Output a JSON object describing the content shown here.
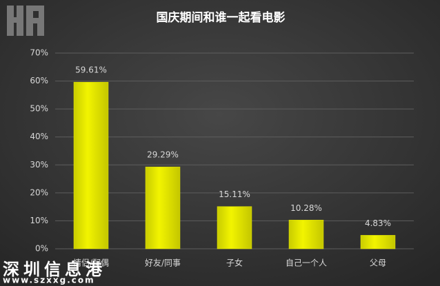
{
  "chart_data": {
    "type": "bar",
    "title": "国庆期间和谁一起看电影",
    "categories": [
      "情侣/配偶",
      "好友/同事",
      "子女",
      "自己一个人",
      "父母"
    ],
    "values": [
      59.61,
      29.29,
      15.11,
      10.28,
      4.83
    ],
    "value_labels": [
      "59.61%",
      "29.29%",
      "15.11%",
      "10.28%",
      "4.83%"
    ],
    "color": "#e6e800",
    "ylim": [
      0,
      70
    ],
    "yticks": [
      {
        "value": 0,
        "label": "0%"
      },
      {
        "value": 10,
        "label": "10%"
      },
      {
        "value": 20,
        "label": "20%"
      },
      {
        "value": 30,
        "label": "30%"
      },
      {
        "value": 40,
        "label": "40%"
      },
      {
        "value": 50,
        "label": "50%"
      },
      {
        "value": 60,
        "label": "60%"
      },
      {
        "value": 70,
        "label": "70%"
      }
    ],
    "grid": true
  },
  "watermark": {
    "name": "深圳信息港",
    "url": "www.szxxg.com"
  }
}
